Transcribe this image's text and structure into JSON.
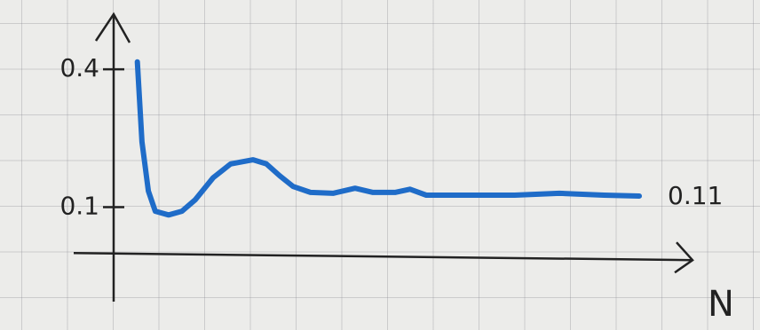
{
  "chart_data": {
    "type": "line",
    "x_label": "N",
    "annotation": "0.11",
    "x": [
      4.1,
      4.9,
      6.0,
      7.2,
      9.5,
      11.8,
      14.1,
      17.2,
      20.2,
      24.1,
      26.4,
      28.7,
      31.0,
      34.0,
      37.9,
      41.7,
      44.8,
      48.6,
      51.2,
      54.0,
      60.1,
      69.3,
      77.0,
      84.7,
      90.8
    ],
    "values": [
      0.416,
      0.242,
      0.135,
      0.091,
      0.083,
      0.091,
      0.116,
      0.164,
      0.194,
      0.203,
      0.194,
      0.168,
      0.145,
      0.132,
      0.13,
      0.141,
      0.132,
      0.132,
      0.139,
      0.126,
      0.126,
      0.126,
      0.13,
      0.126,
      0.124
    ],
    "color": "#1f6cc8",
    "xlim": [
      0,
      100
    ],
    "ylim": [
      -0.1,
      0.52
    ],
    "yticks": [
      0.4,
      0.1
    ]
  }
}
